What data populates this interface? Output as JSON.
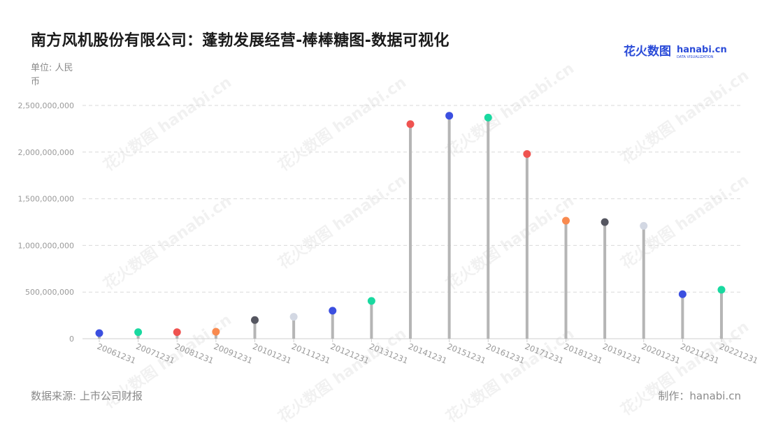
{
  "title": "南方风机股份有限公司：蓬勃发展经营-棒棒糖图-数据可视化",
  "unit_label": "单位: 人民币",
  "source_label": "数据来源: 上市公司财报",
  "maker_label": "制作：hanabi.cn",
  "brand": {
    "logo_cn": "花火数图",
    "logo_en": "hanabi.cn",
    "logo_sub": "DATA VISUALIZATION",
    "color": "#2a4bd8"
  },
  "watermark_text": "花火数图 hanabi.cn",
  "chart_data": {
    "type": "lollipop",
    "categories": [
      "20061231",
      "20071231",
      "20081231",
      "20091231",
      "20101231",
      "20111231",
      "20121231",
      "20131231",
      "20141231",
      "20151231",
      "20161231",
      "20171231",
      "20181231",
      "20191231",
      "20201231",
      "20211231",
      "20221231"
    ],
    "values": [
      60000000,
      70000000,
      70000000,
      75000000,
      200000000,
      235000000,
      300000000,
      405000000,
      2300000000,
      2390000000,
      2370000000,
      1980000000,
      1265000000,
      1250000000,
      1210000000,
      477000000,
      525000000
    ],
    "point_colors": [
      "#3b4fe0",
      "#19d9a0",
      "#ef5350",
      "#f98a4f",
      "#555660",
      "#d3d8e3",
      "#3b4fe0",
      "#19d9a0",
      "#ef5350",
      "#3b4fe0",
      "#19d9a0",
      "#ef5350",
      "#f98a4f",
      "#555660",
      "#d3d8e3",
      "#3b4fe0",
      "#19d9a0"
    ],
    "stem_color": "#b5b5b5",
    "ylim": [
      0,
      2500000000
    ],
    "yticks": [
      0,
      500000000,
      1000000000,
      1500000000,
      2000000000,
      2500000000
    ],
    "ytick_labels": [
      "0",
      "500,000,000",
      "1,000,000,000",
      "1,500,000,000",
      "2,000,000,000",
      "2,500,000,000"
    ],
    "grid": true
  }
}
